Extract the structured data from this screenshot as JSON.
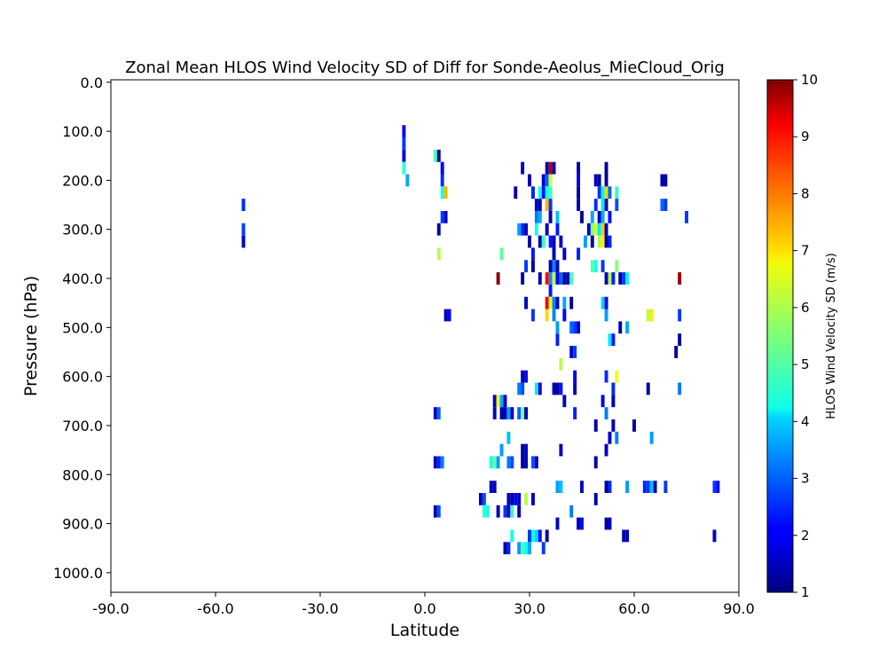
{
  "chart_data": {
    "type": "heatmap",
    "title": "Zonal Mean HLOS Wind Velocity SD of Diff for Sonde-Aeolus_MieCloud_Orig",
    "xlabel": "Latitude",
    "ylabel": "Pressure (hPa)",
    "xlim": [
      -90,
      90
    ],
    "ylim": [
      1040,
      -5
    ],
    "y_inverted": true,
    "x_ticks": [
      -90,
      -60,
      -30,
      0,
      30,
      60,
      90
    ],
    "x_tick_labels": [
      "-90.0",
      "-60.0",
      "-30.0",
      "0.0",
      "30.0",
      "60.0",
      "90.0"
    ],
    "y_ticks": [
      0,
      100,
      200,
      300,
      400,
      500,
      600,
      700,
      800,
      900,
      1000
    ],
    "y_tick_labels": [
      "0.0",
      "100.0",
      "200.0",
      "300.0",
      "400.0",
      "500.0",
      "600.0",
      "700.0",
      "800.0",
      "900.0",
      "1000.0"
    ],
    "cell_width_deg": 1,
    "cell_height_hpa": 25,
    "colorbar": {
      "label": "HLOS Wind Velocity SD (m/s)",
      "min": 1,
      "max": 10,
      "ticks": [
        1,
        2,
        3,
        4,
        5,
        6,
        7,
        8,
        9,
        10
      ],
      "tick_labels": [
        "1",
        "2",
        "3",
        "4",
        "5",
        "6",
        "7",
        "8",
        "9",
        "10"
      ],
      "colormap": "jet"
    },
    "cells": [
      [
        -52,
        250,
        2.5
      ],
      [
        -52,
        300,
        2.7
      ],
      [
        -52,
        325,
        1.6
      ],
      [
        -6,
        100,
        2.2
      ],
      [
        -6,
        125,
        2.6
      ],
      [
        -6,
        150,
        1.9
      ],
      [
        -6,
        175,
        4.8
      ],
      [
        -5,
        200,
        3.6
      ],
      [
        3,
        150,
        5.0
      ],
      [
        4,
        150,
        1.3
      ],
      [
        4,
        300,
        1.4
      ],
      [
        4,
        350,
        6.0
      ],
      [
        5,
        175,
        2.0
      ],
      [
        5,
        200,
        2.5
      ],
      [
        5,
        225,
        4.5
      ],
      [
        6,
        225,
        7.3
      ],
      [
        5,
        275,
        2.6
      ],
      [
        6,
        275,
        1.6
      ],
      [
        6,
        475,
        1.5
      ],
      [
        7,
        475,
        2.1
      ],
      [
        3,
        675,
        1.6
      ],
      [
        4,
        675,
        3.0
      ],
      [
        3,
        775,
        1.5
      ],
      [
        4,
        775,
        2.4
      ],
      [
        5,
        775,
        3.2
      ],
      [
        3,
        875,
        1.4
      ],
      [
        4,
        875,
        2.8
      ],
      [
        28,
        175,
        1.6
      ],
      [
        28,
        300,
        2.4
      ],
      [
        27,
        300,
        3.5
      ],
      [
        29,
        300,
        1.5
      ],
      [
        30,
        325,
        1.3
      ],
      [
        31,
        350,
        2.3
      ],
      [
        26,
        225,
        1.3
      ],
      [
        30,
        200,
        1.4
      ],
      [
        31,
        225,
        2.4
      ],
      [
        32,
        250,
        1.6
      ],
      [
        33,
        250,
        1.3
      ],
      [
        32,
        275,
        3.2
      ],
      [
        33,
        275,
        3.6
      ],
      [
        33,
        225,
        4.5
      ],
      [
        32,
        300,
        4.5
      ],
      [
        33,
        325,
        1.3
      ],
      [
        34,
        200,
        1.6
      ],
      [
        34,
        225,
        2.2
      ],
      [
        34,
        325,
        4.8
      ],
      [
        35,
        200,
        3.0
      ],
      [
        35,
        225,
        4.5
      ],
      [
        35,
        250,
        7.3
      ],
      [
        35,
        175,
        1.5
      ],
      [
        36,
        175,
        9.5
      ],
      [
        36,
        200,
        6.2
      ],
      [
        36,
        225,
        5.0
      ],
      [
        37,
        175,
        1.5
      ],
      [
        36,
        250,
        2.6
      ],
      [
        36,
        275,
        1.3
      ],
      [
        35,
        300,
        1.4
      ],
      [
        36,
        325,
        2.3
      ],
      [
        37,
        325,
        1.6
      ],
      [
        37,
        350,
        1.3
      ],
      [
        38,
        275,
        3.8
      ],
      [
        38,
        300,
        2.3
      ],
      [
        39,
        325,
        1.6
      ],
      [
        40,
        350,
        1.6
      ],
      [
        36,
        375,
        1.4
      ],
      [
        37,
        375,
        3.3
      ],
      [
        38,
        375,
        1.5
      ],
      [
        36,
        400,
        3.4
      ],
      [
        35,
        400,
        8.8
      ],
      [
        37,
        400,
        6.0
      ],
      [
        38,
        400,
        2.0
      ],
      [
        39,
        400,
        3.0
      ],
      [
        40,
        400,
        1.3
      ],
      [
        41,
        400,
        1.5
      ],
      [
        42,
        400,
        5.0
      ],
      [
        36,
        425,
        2.3
      ],
      [
        35,
        450,
        9.0
      ],
      [
        36,
        450,
        6.5
      ],
      [
        37,
        450,
        3.3
      ],
      [
        38,
        450,
        1.4
      ],
      [
        40,
        450,
        3.6
      ],
      [
        42,
        450,
        1.2
      ],
      [
        35,
        475,
        7.0
      ],
      [
        37,
        475,
        3.3
      ],
      [
        40,
        475,
        2.1
      ],
      [
        38,
        525,
        2.4
      ],
      [
        38,
        500,
        3.5
      ],
      [
        42,
        500,
        3.0
      ],
      [
        43,
        500,
        2.6
      ],
      [
        44,
        500,
        1.6
      ],
      [
        28,
        400,
        1.3
      ],
      [
        29,
        375,
        2.6
      ],
      [
        31,
        375,
        1.3
      ],
      [
        33,
        400,
        1.5
      ],
      [
        21,
        400,
        10
      ],
      [
        22,
        350,
        5.2
      ],
      [
        29,
        450,
        1.5
      ],
      [
        31,
        475,
        2.6
      ],
      [
        44,
        175,
        1.4
      ],
      [
        44,
        200,
        2.0
      ],
      [
        44,
        225,
        1.3
      ],
      [
        44,
        250,
        1.6
      ],
      [
        45,
        275,
        1.3
      ],
      [
        44,
        350,
        2.4
      ],
      [
        46,
        325,
        3.5
      ],
      [
        47,
        300,
        1.6
      ],
      [
        48,
        275,
        3.6
      ],
      [
        48,
        300,
        5.5
      ],
      [
        49,
        300,
        6.2
      ],
      [
        49,
        250,
        2.5
      ],
      [
        48,
        325,
        1.3
      ],
      [
        48,
        375,
        5.2
      ],
      [
        49,
        200,
        1.6
      ],
      [
        50,
        200,
        1.3
      ],
      [
        50,
        225,
        2.6
      ],
      [
        51,
        225,
        4.3
      ],
      [
        51,
        250,
        4.2
      ],
      [
        52,
        225,
        7.0
      ],
      [
        52,
        250,
        1.3
      ],
      [
        50,
        275,
        1.5
      ],
      [
        51,
        275,
        3.6
      ],
      [
        50,
        300,
        4.2
      ],
      [
        51,
        300,
        7.1
      ],
      [
        52,
        300,
        1.6
      ],
      [
        50,
        325,
        5.8
      ],
      [
        51,
        325,
        6.8
      ],
      [
        52,
        325,
        1.4
      ],
      [
        53,
        325,
        2.4
      ],
      [
        52,
        175,
        1.3
      ],
      [
        52,
        200,
        1.3
      ],
      [
        53,
        225,
        3.0
      ],
      [
        53,
        275,
        2.2
      ],
      [
        55,
        225,
        4.8
      ],
      [
        55,
        250,
        2.8
      ],
      [
        49,
        375,
        4.5
      ],
      [
        51,
        375,
        2.6
      ],
      [
        52,
        400,
        1.6
      ],
      [
        53,
        400,
        6.0
      ],
      [
        54,
        400,
        2.4
      ],
      [
        55,
        375,
        5.6
      ],
      [
        56,
        400,
        1.3
      ],
      [
        57,
        400,
        2.6
      ],
      [
        58,
        400,
        4.3
      ],
      [
        51,
        450,
        4.0
      ],
      [
        52,
        450,
        1.8
      ],
      [
        52,
        475,
        3.5
      ],
      [
        56,
        500,
        1.4
      ],
      [
        58,
        500,
        3.6
      ],
      [
        53,
        525,
        4.2
      ],
      [
        54,
        525,
        2.3
      ],
      [
        64,
        475,
        6.0
      ],
      [
        65,
        475,
        6.8
      ],
      [
        68,
        200,
        1.3
      ],
      [
        69,
        200,
        1.4
      ],
      [
        68,
        250,
        3.0
      ],
      [
        69,
        250,
        2.6
      ],
      [
        73,
        400,
        9.8
      ],
      [
        73,
        475,
        2.6
      ],
      [
        73,
        525,
        1.3
      ],
      [
        72,
        550,
        1.2
      ],
      [
        75,
        275,
        2.6
      ],
      [
        39,
        575,
        6.0
      ],
      [
        42,
        550,
        1.6
      ],
      [
        43,
        550,
        2.6
      ],
      [
        43,
        600,
        2.0
      ],
      [
        52,
        600,
        2.5
      ],
      [
        55,
        600,
        6.5
      ],
      [
        28,
        600,
        1.3
      ],
      [
        29,
        600,
        2.0
      ],
      [
        27,
        625,
        3.2
      ],
      [
        28,
        625,
        2.8
      ],
      [
        32,
        625,
        4.2
      ],
      [
        33,
        625,
        1.8
      ],
      [
        37,
        625,
        1.5
      ],
      [
        38,
        625,
        1.3
      ],
      [
        39,
        625,
        2.3
      ],
      [
        43,
        625,
        1.5
      ],
      [
        54,
        625,
        2.5
      ],
      [
        64,
        625,
        1.3
      ],
      [
        73,
        625,
        3.2
      ],
      [
        20,
        650,
        1.5
      ],
      [
        21,
        650,
        6.5
      ],
      [
        22,
        650,
        3.6
      ],
      [
        23,
        650,
        1.6
      ],
      [
        40,
        650,
        1.4
      ],
      [
        51,
        650,
        2.0
      ],
      [
        54,
        650,
        1.4
      ],
      [
        20,
        675,
        1.5
      ],
      [
        22,
        675,
        1.3
      ],
      [
        23,
        675,
        1.6
      ],
      [
        24,
        675,
        3.6
      ],
      [
        25,
        675,
        1.6
      ],
      [
        27,
        675,
        3.0
      ],
      [
        28,
        675,
        5.5
      ],
      [
        29,
        675,
        1.5
      ],
      [
        43,
        675,
        2.4
      ],
      [
        52,
        675,
        3.2
      ],
      [
        49,
        700,
        1.3
      ],
      [
        54,
        700,
        1.4
      ],
      [
        60,
        700,
        1.3
      ],
      [
        24,
        725,
        3.8
      ],
      [
        53,
        725,
        1.6
      ],
      [
        55,
        725,
        3.2
      ],
      [
        65,
        725,
        3.5
      ],
      [
        22,
        750,
        3.5
      ],
      [
        28,
        750,
        1.3
      ],
      [
        29,
        750,
        1.6
      ],
      [
        39,
        750,
        1.5
      ],
      [
        52,
        750,
        1.6
      ],
      [
        19,
        775,
        4.6
      ],
      [
        20,
        775,
        5.3
      ],
      [
        21,
        775,
        3.5
      ],
      [
        24,
        775,
        3.2
      ],
      [
        25,
        775,
        2.8
      ],
      [
        28,
        775,
        1.3
      ],
      [
        29,
        775,
        1.6
      ],
      [
        31,
        775,
        2.8
      ],
      [
        32,
        775,
        1.5
      ],
      [
        49,
        775,
        1.3
      ],
      [
        19,
        825,
        1.4
      ],
      [
        20,
        825,
        1.6
      ],
      [
        38,
        825,
        3.5
      ],
      [
        39,
        825,
        3.8
      ],
      [
        45,
        825,
        1.6
      ],
      [
        52,
        825,
        1.3
      ],
      [
        53,
        825,
        2.5
      ],
      [
        58,
        825,
        3.5
      ],
      [
        63,
        825,
        2.4
      ],
      [
        64,
        825,
        2.6
      ],
      [
        65,
        825,
        3.8
      ],
      [
        66,
        825,
        1.4
      ],
      [
        69,
        825,
        2.6
      ],
      [
        83,
        825,
        2.6
      ],
      [
        84,
        825,
        2.2
      ],
      [
        16,
        850,
        1.4
      ],
      [
        17,
        850,
        2.8
      ],
      [
        24,
        850,
        1.6
      ],
      [
        25,
        850,
        1.3
      ],
      [
        26,
        850,
        2.0
      ],
      [
        27,
        850,
        1.6
      ],
      [
        29,
        850,
        6.0
      ],
      [
        31,
        850,
        1.6
      ],
      [
        49,
        850,
        1.3
      ],
      [
        17,
        875,
        4.8
      ],
      [
        18,
        875,
        4.6
      ],
      [
        21,
        875,
        1.4
      ],
      [
        23,
        875,
        2.6
      ],
      [
        24,
        875,
        1.5
      ],
      [
        25,
        875,
        4.8
      ],
      [
        27,
        875,
        1.4
      ],
      [
        42,
        875,
        3.2
      ],
      [
        38,
        900,
        1.6
      ],
      [
        44,
        900,
        1.4
      ],
      [
        45,
        900,
        2.2
      ],
      [
        52,
        900,
        1.3
      ],
      [
        53,
        900,
        1.6
      ],
      [
        25,
        925,
        4.5
      ],
      [
        30,
        925,
        2.6
      ],
      [
        31,
        925,
        4.5
      ],
      [
        32,
        925,
        4.0
      ],
      [
        33,
        925,
        2.2
      ],
      [
        35,
        925,
        1.3
      ],
      [
        57,
        925,
        1.4
      ],
      [
        58,
        925,
        1.4
      ],
      [
        83,
        925,
        1.6
      ],
      [
        23,
        950,
        1.4
      ],
      [
        24,
        950,
        2.4
      ],
      [
        27,
        950,
        3.5
      ],
      [
        28,
        950,
        5.0
      ],
      [
        29,
        950,
        4.5
      ],
      [
        30,
        950,
        3.6
      ],
      [
        34,
        950,
        2.6
      ]
    ]
  }
}
